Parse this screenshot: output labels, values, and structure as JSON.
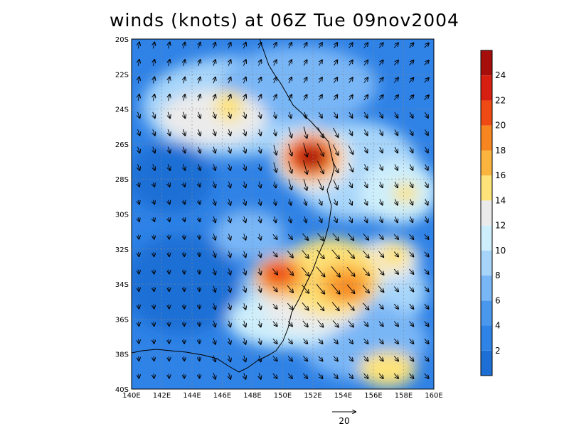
{
  "title": "winds (knots) at 06Z Tue 09nov2004",
  "lon_labels": [
    "140E",
    "142E",
    "144E",
    "146E",
    "148E",
    "150E",
    "152E",
    "154E",
    "156E",
    "158E",
    "160E"
  ],
  "lat_labels": [
    "20S",
    "22S",
    "24S",
    "26S",
    "28S",
    "30S",
    "32S",
    "34S",
    "36S",
    "38S",
    "40S"
  ],
  "colorbar": {
    "labels": [
      "2",
      "4",
      "6",
      "8",
      "10",
      "12",
      "14",
      "16",
      "18",
      "20",
      "22",
      "24"
    ],
    "colors": [
      "#1e6fd5",
      "#2f82e6",
      "#4a97ee",
      "#79b6f6",
      "#a7d5fa",
      "#cdeefb",
      "#ebebeb",
      "#fde37a",
      "#fbb43d",
      "#f78520",
      "#ef4a14",
      "#d61f10",
      "#a50e0a"
    ]
  },
  "reference_vector": {
    "label": "20"
  },
  "colors": {
    "land_line": "#000000",
    "grid": "#888888",
    "background": "#ffffff"
  }
}
